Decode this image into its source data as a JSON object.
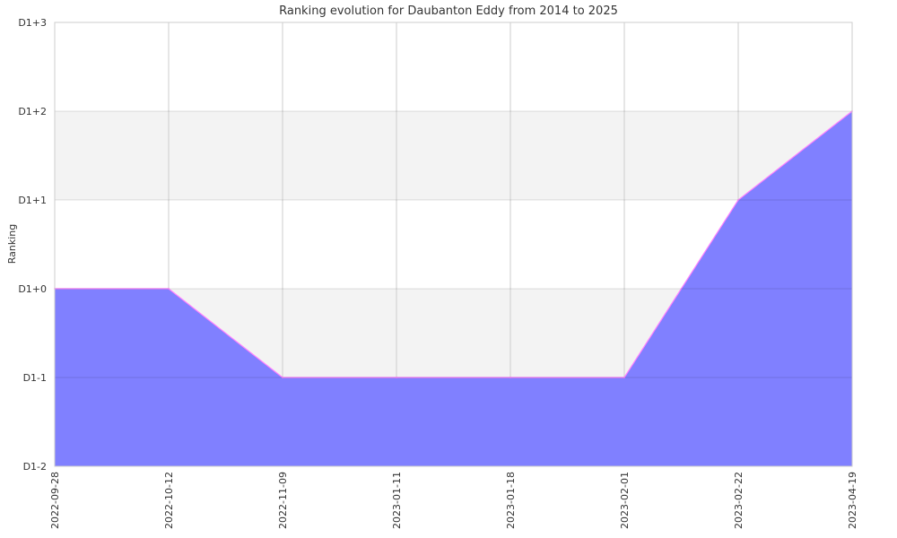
{
  "chart_data": {
    "type": "area",
    "title": "Ranking evolution for Daubanton Eddy from 2014 to 2025",
    "xlabel": "",
    "ylabel": "Ranking",
    "categories": [
      "2022-09-28",
      "2022-10-12",
      "2022-11-09",
      "2023-01-11",
      "2023-01-18",
      "2023-02-01",
      "2023-02-22",
      "2023-04-19"
    ],
    "y_ticks": [
      {
        "value": -2,
        "label": "D1-2"
      },
      {
        "value": -1,
        "label": "D1-1"
      },
      {
        "value": 0,
        "label": "D1+0"
      },
      {
        "value": 1,
        "label": "D1+1"
      },
      {
        "value": 2,
        "label": "D1+2"
      },
      {
        "value": 3,
        "label": "D1+3"
      }
    ],
    "ylim": [
      -2,
      3
    ],
    "grid": true,
    "series": [
      {
        "values": [
          0,
          0,
          -1,
          -1,
          -1,
          -1,
          1,
          2
        ]
      }
    ],
    "colors": {
      "fill": "#8080ff",
      "line": "#ff80ff",
      "band": "#f3f3f3",
      "grid": "#cccccc"
    }
  }
}
